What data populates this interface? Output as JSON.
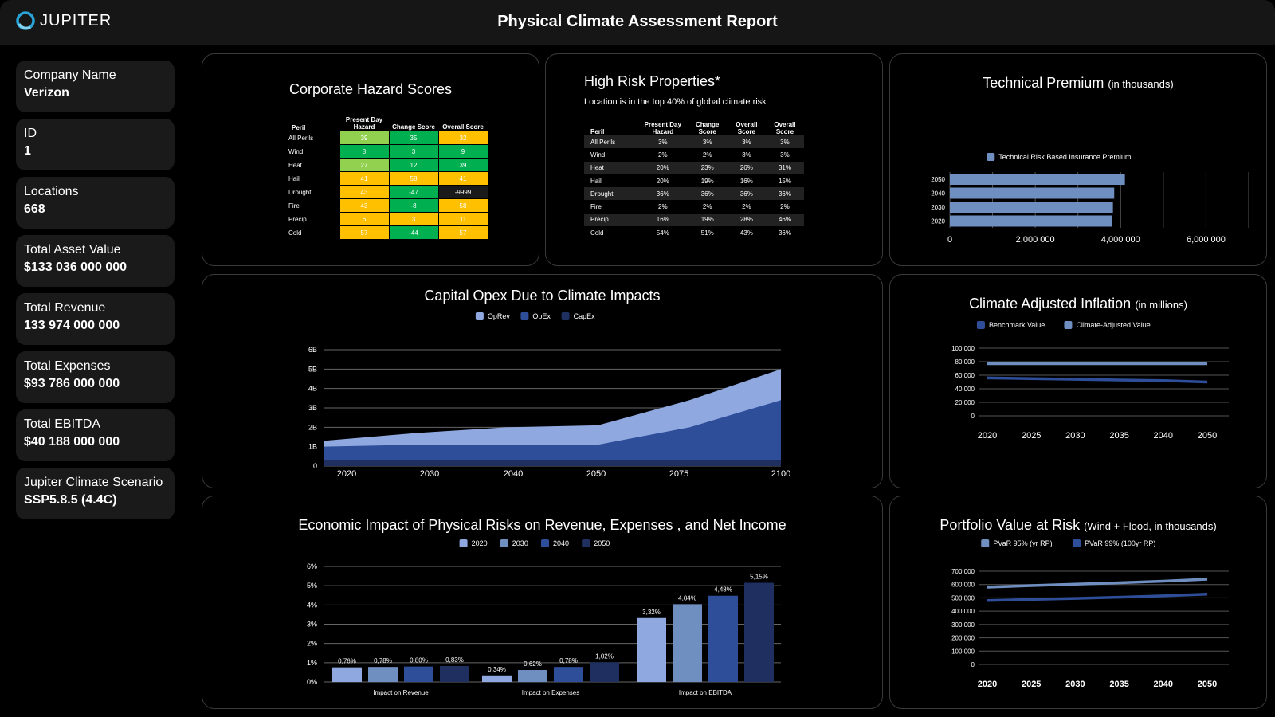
{
  "header": {
    "logo_text": "JUPITER",
    "title": "Physical Climate Assessment Report"
  },
  "sidebar": [
    {
      "label": "Company Name",
      "value": "Verizon"
    },
    {
      "label": "ID",
      "value": "1"
    },
    {
      "label": "Locations",
      "value": "668"
    },
    {
      "label": "Total Asset Value",
      "value": "$133 036 000 000"
    },
    {
      "label": "Total Revenue",
      "value": "133 974 000 000"
    },
    {
      "label": "Total Expenses",
      "value": "$93 786 000 000"
    },
    {
      "label": "Total EBITDA",
      "value": "$40 188 000 000"
    },
    {
      "label": "Jupiter Climate Scenario",
      "value": "SSP5.8.5 (4.4C)"
    }
  ],
  "hazard": {
    "title": "Corporate Hazard Scores",
    "headers": [
      "Peril",
      "Present Day Hazard",
      "Change Score",
      "Overall Score"
    ],
    "rows": [
      [
        "All Perils",
        "39",
        "35",
        "32"
      ],
      [
        "Wind",
        "8",
        "3",
        "9"
      ],
      [
        "Heat",
        "27",
        "12",
        "39"
      ],
      [
        "Hail",
        "41",
        "58",
        "41"
      ],
      [
        "Drought",
        "43",
        "-47",
        "-9999"
      ],
      [
        "Fire",
        "43",
        "-8",
        "58"
      ],
      [
        "Precip",
        "6",
        "3",
        "11"
      ],
      [
        "Cold",
        "57",
        "-44",
        "57"
      ]
    ],
    "colors": [
      [
        "#92d050",
        "#00b050",
        "#ffc000"
      ],
      [
        "#00b050",
        "#00b050",
        "#00b050"
      ],
      [
        "#92d050",
        "#00b050",
        "#00b050"
      ],
      [
        "#ffc000",
        "#ffc000",
        "#ffc000"
      ],
      [
        "#ffc000",
        "#00b050",
        "#1a1a1a"
      ],
      [
        "#ffc000",
        "#00b050",
        "#ffc000"
      ],
      [
        "#ffc000",
        "#ffc000",
        "#ffc000"
      ],
      [
        "#ffc000",
        "#00b050",
        "#ffc000"
      ]
    ]
  },
  "risk_props": {
    "title": "High Risk Properties*",
    "subtitle": "Location is in the top 40% of global climate risk",
    "headers": [
      "Peril",
      "Present Day Hazard",
      "Change Score",
      "Overall Score",
      "Overall Score"
    ],
    "rows": [
      [
        "All Perils",
        "3%",
        "3%",
        "3%",
        "3%"
      ],
      [
        "Wind",
        "2%",
        "2%",
        "3%",
        "3%"
      ],
      [
        "Heat",
        "20%",
        "23%",
        "26%",
        "31%"
      ],
      [
        "Hail",
        "20%",
        "19%",
        "16%",
        "15%"
      ],
      [
        "Drought",
        "36%",
        "36%",
        "36%",
        "36%"
      ],
      [
        "Fire",
        "2%",
        "2%",
        "2%",
        "2%"
      ],
      [
        "Precip",
        "16%",
        "19%",
        "28%",
        "46%"
      ],
      [
        "Cold",
        "54%",
        "51%",
        "43%",
        "36%"
      ]
    ]
  },
  "premium": {
    "title": "Technical Premium",
    "title_small": "(in thousands)",
    "chart_data": {
      "type": "bar",
      "orientation": "horizontal",
      "categories": [
        "2050",
        "2040",
        "2030",
        "2020"
      ],
      "series": [
        {
          "name": "Technical Risk Based Insurance Premium",
          "values": [
            4100000,
            3850000,
            3820000,
            3800000
          ]
        }
      ],
      "xticks": [
        "0",
        "2,000 000",
        "4,000 000",
        "6,000 000"
      ],
      "xlim": [
        0,
        7000000
      ],
      "color": "#6f8fc0"
    }
  },
  "capex": {
    "title": "Capital Opex Due to Climate Impacts",
    "chart_data": {
      "type": "area",
      "x": [
        "2020",
        "2030",
        "2040",
        "2050",
        "2075",
        "2100"
      ],
      "series": [
        {
          "name": "OpRev",
          "values": [
            1.3,
            1.7,
            2.0,
            2.1,
            3.4,
            5.0
          ],
          "color": "#8fa8e0"
        },
        {
          "name": "OpEx",
          "values": [
            1.0,
            1.1,
            1.1,
            1.1,
            2.0,
            3.4
          ],
          "color": "#2f4e9a"
        },
        {
          "name": "CapEx",
          "values": [
            0.3,
            0.3,
            0.3,
            0.3,
            0.3,
            0.3
          ],
          "color": "#1f3060"
        }
      ],
      "yticks": [
        "0",
        "1B",
        "2B",
        "3B",
        "4B",
        "5B",
        "6B"
      ],
      "ylim": [
        0,
        6
      ]
    }
  },
  "inflation": {
    "title": "Climate Adjusted Inflation",
    "title_small": "(in millions)",
    "chart_data": {
      "type": "line",
      "x": [
        "2020",
        "2025",
        "2030",
        "2035",
        "2040",
        "2050"
      ],
      "series": [
        {
          "name": "Benchmark Value",
          "values": [
            56000,
            55000,
            54000,
            53000,
            52000,
            50000
          ],
          "color": "#2f4e9a"
        },
        {
          "name": "Climate-Adjusted Value",
          "values": [
            77000,
            77000,
            77000,
            77000,
            77000,
            77000
          ],
          "color": "#6f8fc0"
        }
      ],
      "yticks": [
        "0",
        "20 000",
        "40 000",
        "60 000",
        "80 000",
        "100 000"
      ],
      "ylim": [
        0,
        100000
      ]
    }
  },
  "economic": {
    "title": "Economic Impact of Physical Risks on Revenue, Expenses , and Net Income",
    "chart_data": {
      "type": "bar",
      "categories": [
        "Impact on Revenue",
        "Impact on Expenses",
        "Impact on EBITDA"
      ],
      "series": [
        {
          "name": "2020",
          "values": [
            0.76,
            0.34,
            3.32
          ],
          "labels": [
            "0,76%",
            "0,34%",
            "3,32%"
          ],
          "color": "#8fa8e0"
        },
        {
          "name": "2030",
          "values": [
            0.78,
            0.62,
            4.04
          ],
          "labels": [
            "0,78%",
            "0,62%",
            "4,04%"
          ],
          "color": "#6f8fc0"
        },
        {
          "name": "2040",
          "values": [
            0.8,
            0.78,
            4.48
          ],
          "labels": [
            "0,80%",
            "0,78%",
            "4,48%"
          ],
          "color": "#2f4e9a"
        },
        {
          "name": "2050",
          "values": [
            0.83,
            1.02,
            5.15
          ],
          "labels": [
            "0,83%",
            "1,02%",
            "5,15%"
          ],
          "color": "#1f3060"
        }
      ],
      "yticks": [
        "0%",
        "1%",
        "2%",
        "3%",
        "4%",
        "5%",
        "6%"
      ],
      "ylim": [
        0,
        6
      ]
    }
  },
  "pvar": {
    "title": "Portfolio Value at Risk",
    "title_small": "(Wind + Flood, in thousands)",
    "chart_data": {
      "type": "line",
      "x": [
        "2020",
        "2025",
        "2030",
        "2035",
        "2040",
        "2050"
      ],
      "series": [
        {
          "name": "PVaR 95% (yr RP)",
          "values": [
            580000,
            592000,
            603000,
            613000,
            625000,
            640000
          ],
          "color": "#6f8fc0"
        },
        {
          "name": "PVaR 99% (100yr RP)",
          "values": [
            480000,
            488000,
            496000,
            505000,
            515000,
            528000
          ],
          "color": "#2f4e9a"
        }
      ],
      "yticks": [
        "0",
        "100 000",
        "200 000",
        "300 000",
        "400 000",
        "500 000",
        "600 000",
        "700 000"
      ],
      "ylim": [
        0,
        700000
      ]
    }
  }
}
